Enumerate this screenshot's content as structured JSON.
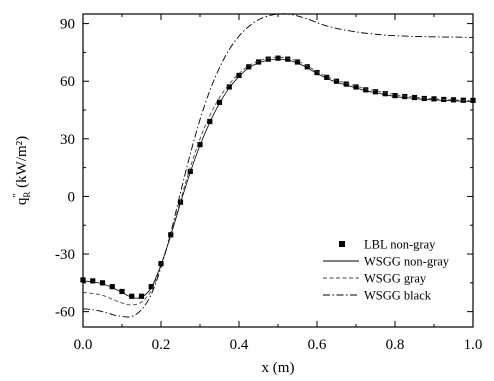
{
  "chart_data": {
    "type": "line",
    "title": "",
    "xlabel": "x (m)",
    "ylabel": {
      "main": "q",
      "superscript": "\"",
      "subscript": "R",
      "units": " (kW/m²)"
    },
    "xlim": [
      0.0,
      1.0
    ],
    "ylim": [
      -68,
      95
    ],
    "x_ticks": [
      0.0,
      0.2,
      0.4,
      0.6,
      0.8,
      1.0
    ],
    "x_tick_labels": [
      "0.0",
      "0.2",
      "0.4",
      "0.6",
      "0.8",
      "1.0"
    ],
    "y_ticks": [
      -60,
      -30,
      0,
      30,
      60,
      90
    ],
    "y_tick_labels": [
      "-60",
      "-30",
      "0",
      "30",
      "60",
      "90"
    ],
    "grid": false,
    "legend_position": "bottom-right",
    "series": [
      {
        "name": "LBL non-gray",
        "style": "square-markers",
        "x": [
          0.0,
          0.025,
          0.05,
          0.075,
          0.1,
          0.125,
          0.15,
          0.175,
          0.2,
          0.225,
          0.25,
          0.275,
          0.3,
          0.325,
          0.35,
          0.375,
          0.4,
          0.425,
          0.45,
          0.475,
          0.5,
          0.525,
          0.55,
          0.575,
          0.6,
          0.625,
          0.65,
          0.675,
          0.7,
          0.725,
          0.75,
          0.775,
          0.8,
          0.825,
          0.85,
          0.875,
          0.9,
          0.925,
          0.95,
          0.975,
          1.0
        ],
        "y": [
          -43.5,
          -44,
          -45,
          -47,
          -49.5,
          -52,
          -52,
          -47,
          -35,
          -20,
          -3,
          13,
          27,
          39,
          49,
          57,
          63,
          67.5,
          70,
          71.5,
          72,
          71.5,
          70,
          67.5,
          64.5,
          62,
          60,
          58.5,
          57,
          55.5,
          54.5,
          53.5,
          52.5,
          52,
          51.5,
          51,
          50.8,
          50.5,
          50.3,
          50.1,
          50
        ]
      },
      {
        "name": "WSGG non-gray",
        "style": "solid",
        "x": [
          0.0,
          0.025,
          0.05,
          0.075,
          0.1,
          0.125,
          0.15,
          0.175,
          0.2,
          0.225,
          0.25,
          0.275,
          0.3,
          0.325,
          0.35,
          0.375,
          0.4,
          0.425,
          0.45,
          0.475,
          0.5,
          0.525,
          0.55,
          0.575,
          0.6,
          0.625,
          0.65,
          0.675,
          0.7,
          0.725,
          0.75,
          0.775,
          0.8,
          0.825,
          0.85,
          0.875,
          0.9,
          0.925,
          0.95,
          0.975,
          1.0
        ],
        "y": [
          -44,
          -44.5,
          -45.5,
          -47.5,
          -50,
          -52.5,
          -52.5,
          -47.5,
          -35.5,
          -20.5,
          -3.5,
          12.5,
          26.5,
          38.5,
          48.5,
          56.5,
          62.5,
          67,
          69.5,
          71,
          71.5,
          71,
          69.5,
          67,
          64,
          61.5,
          59.5,
          58,
          56.5,
          55,
          54,
          53,
          52,
          51.5,
          51,
          50.5,
          50.3,
          50,
          49.8,
          49.6,
          49.5
        ]
      },
      {
        "name": "WSGG gray",
        "style": "dashed",
        "x": [
          0.0,
          0.025,
          0.05,
          0.075,
          0.1,
          0.125,
          0.15,
          0.175,
          0.2,
          0.225,
          0.25,
          0.275,
          0.3,
          0.325,
          0.35,
          0.375,
          0.4,
          0.425,
          0.45,
          0.475,
          0.5,
          0.525,
          0.55,
          0.575,
          0.6,
          0.625,
          0.65,
          0.675,
          0.7,
          0.725,
          0.75,
          0.775,
          0.8,
          0.825,
          0.85,
          0.875,
          0.9,
          0.925,
          0.95,
          0.975,
          1.0
        ],
        "y": [
          -50,
          -50.5,
          -51.5,
          -53.5,
          -55.5,
          -56.5,
          -55,
          -49,
          -36,
          -20,
          -2,
          15,
          30,
          42,
          51.5,
          58.5,
          64,
          68,
          70.5,
          72,
          72.5,
          72,
          70.5,
          68,
          65,
          62.5,
          60.5,
          59,
          57.5,
          56,
          55,
          54,
          53,
          52.3,
          51.7,
          51.2,
          50.8,
          50.5,
          50.2,
          50,
          49.8
        ]
      },
      {
        "name": "WSGG black",
        "style": "dash-dot",
        "x": [
          0.0,
          0.025,
          0.05,
          0.075,
          0.1,
          0.125,
          0.15,
          0.175,
          0.2,
          0.225,
          0.25,
          0.275,
          0.3,
          0.325,
          0.35,
          0.375,
          0.4,
          0.425,
          0.45,
          0.475,
          0.5,
          0.525,
          0.55,
          0.575,
          0.6,
          0.625,
          0.65,
          0.675,
          0.7,
          0.725,
          0.75,
          0.775,
          0.8,
          0.825,
          0.85,
          0.875,
          0.9,
          0.925,
          0.95,
          0.975,
          1.0
        ],
        "y": [
          -58.5,
          -59,
          -60,
          -61.5,
          -62.5,
          -62.5,
          -59,
          -51,
          -37,
          -19,
          2,
          22,
          40,
          55,
          67,
          76.5,
          83.5,
          88.5,
          92,
          94,
          95,
          95,
          94,
          92.5,
          90.5,
          88.8,
          87.5,
          86.5,
          85.7,
          85,
          84.5,
          84,
          83.7,
          83.5,
          83.3,
          83.2,
          83.1,
          83,
          83,
          82.9,
          82.8
        ]
      }
    ]
  }
}
